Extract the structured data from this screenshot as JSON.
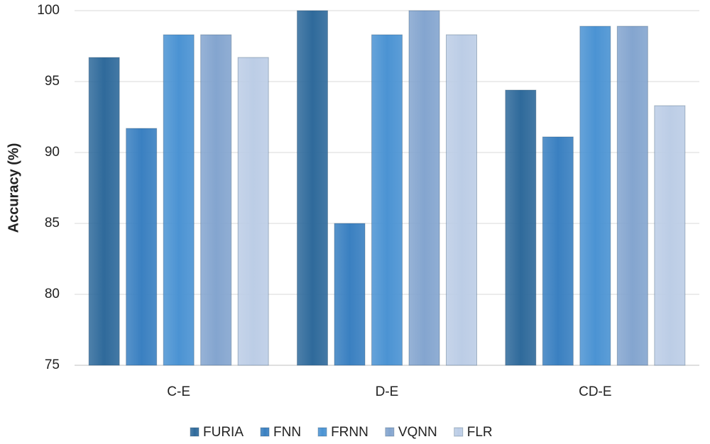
{
  "chart_data": {
    "type": "bar",
    "y_label": "Accuracy (%)",
    "categories": [
      "C-E",
      "D-E",
      "CD-E"
    ],
    "series": [
      {
        "name": "FURIA",
        "color": "#2f6a9b",
        "values": [
          96.7,
          100,
          94.4
        ]
      },
      {
        "name": "FNN",
        "color": "#3a80c1",
        "values": [
          91.7,
          85,
          91.1
        ]
      },
      {
        "name": "FRNN",
        "color": "#4b93d3",
        "values": [
          98.3,
          98.3,
          98.9
        ]
      },
      {
        "name": "VQNN",
        "color": "#84a5cf",
        "values": [
          98.3,
          100,
          98.9
        ]
      },
      {
        "name": "FLR",
        "color": "#bccde6",
        "values": [
          96.7,
          98.3,
          93.3
        ]
      }
    ],
    "ylim": [
      75,
      100
    ],
    "yticks": [
      75,
      80,
      85,
      90,
      95,
      100
    ],
    "grid": true,
    "legend": "bottom"
  }
}
